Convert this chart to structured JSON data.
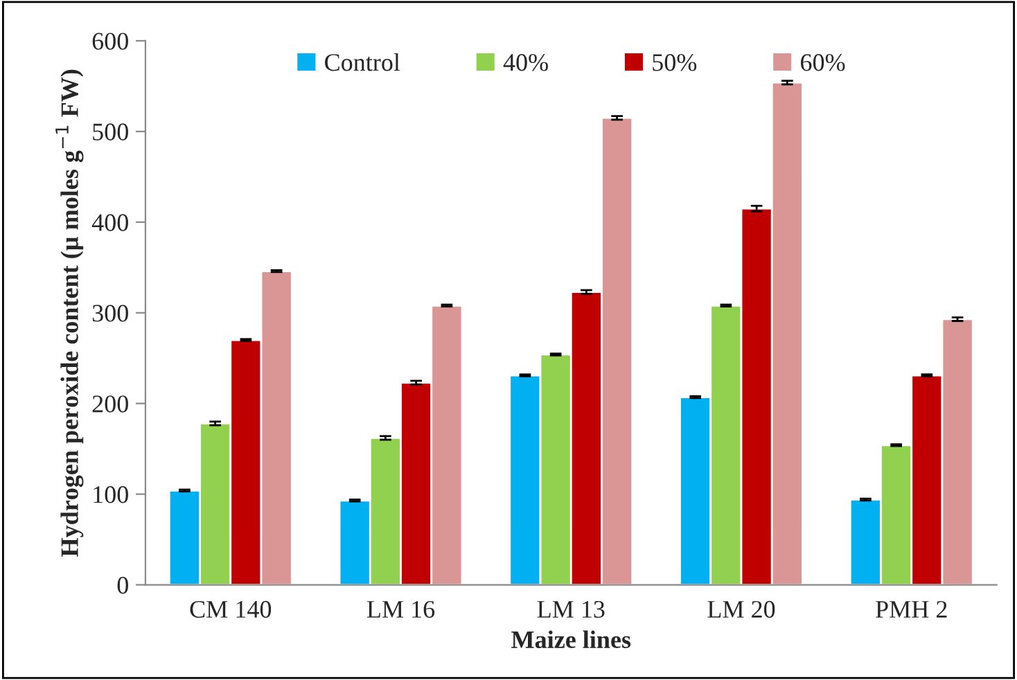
{
  "chart_data": {
    "type": "bar",
    "xlabel": "Maize lines",
    "ylabel": "Hydrogen peroxide content (µ moles g$^{−1}$ FW)",
    "categories": [
      "CM 140",
      "LM 16",
      "LM 13",
      "LM 20",
      "PMH 2"
    ],
    "series": [
      {
        "name": "Control",
        "color": "#00b0f0",
        "values": [
          104,
          93,
          231,
          207,
          94
        ],
        "errors": [
          1,
          1,
          1,
          1,
          1
        ]
      },
      {
        "name": "40%",
        "color": "#92d050",
        "values": [
          178,
          162,
          254,
          308,
          154
        ],
        "errors": [
          2,
          2,
          1,
          1,
          1
        ]
      },
      {
        "name": "50%",
        "color": "#c00000",
        "values": [
          270,
          223,
          323,
          415,
          231
        ],
        "errors": [
          1,
          2,
          2,
          3,
          1
        ]
      },
      {
        "name": "60%",
        "color": "#d99694",
        "values": [
          346,
          308,
          515,
          554,
          293
        ],
        "errors": [
          1,
          1,
          2,
          2,
          2
        ]
      }
    ],
    "ylim": [
      0,
      600
    ],
    "yticks": [
      0,
      100,
      200,
      300,
      400,
      500,
      600
    ],
    "grid": false,
    "legend": "top"
  }
}
